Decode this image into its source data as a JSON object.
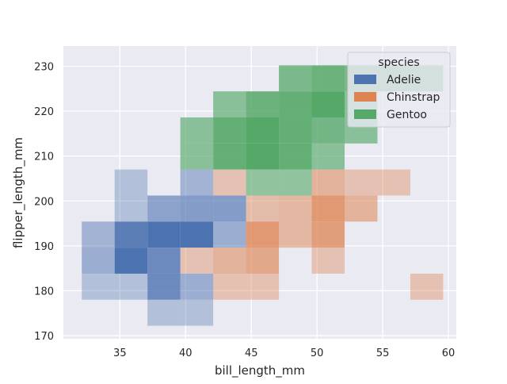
{
  "chart_data": {
    "type": "heatmap",
    "subtype": "bivariate-histogram",
    "xlabel": "bill_length_mm",
    "ylabel": "flipper_length_mm",
    "xlim": [
      30.7,
      60.6
    ],
    "ylim": [
      169.3,
      234.5
    ],
    "xticks": [
      35,
      40,
      45,
      50,
      55,
      60
    ],
    "yticks": [
      170,
      180,
      190,
      200,
      210,
      220,
      230
    ],
    "grid": true,
    "background_color": "#eaeaf2",
    "legend": {
      "title": "species",
      "placement": "top-right"
    },
    "bin_width_x": 2.5,
    "bin_height_y": 5.8,
    "series": [
      {
        "name": "Adelie",
        "color": "#4c72b0",
        "bins": [
          {
            "x0": 32.1,
            "y0": 178.0,
            "alpha": 0.35
          },
          {
            "x0": 34.6,
            "y0": 178.0,
            "alpha": 0.35
          },
          {
            "x0": 37.1,
            "y0": 178.0,
            "alpha": 0.8
          },
          {
            "x0": 39.6,
            "y0": 178.0,
            "alpha": 0.5
          },
          {
            "x0": 37.1,
            "y0": 172.2,
            "alpha": 0.35
          },
          {
            "x0": 39.6,
            "y0": 172.2,
            "alpha": 0.35
          },
          {
            "x0": 32.1,
            "y0": 183.8,
            "alpha": 0.5
          },
          {
            "x0": 34.6,
            "y0": 183.8,
            "alpha": 1.0
          },
          {
            "x0": 37.1,
            "y0": 183.8,
            "alpha": 0.8
          },
          {
            "x0": 32.1,
            "y0": 189.6,
            "alpha": 0.45
          },
          {
            "x0": 34.6,
            "y0": 189.6,
            "alpha": 0.9
          },
          {
            "x0": 37.1,
            "y0": 189.6,
            "alpha": 1.0
          },
          {
            "x0": 39.6,
            "y0": 189.6,
            "alpha": 1.0
          },
          {
            "x0": 42.1,
            "y0": 189.6,
            "alpha": 0.5
          },
          {
            "x0": 34.6,
            "y0": 195.4,
            "alpha": 0.35
          },
          {
            "x0": 37.1,
            "y0": 195.4,
            "alpha": 0.6
          },
          {
            "x0": 39.6,
            "y0": 195.4,
            "alpha": 0.65
          },
          {
            "x0": 42.1,
            "y0": 195.4,
            "alpha": 0.65
          },
          {
            "x0": 34.6,
            "y0": 201.2,
            "alpha": 0.35
          },
          {
            "x0": 39.6,
            "y0": 201.2,
            "alpha": 0.45
          }
        ]
      },
      {
        "name": "Chinstrap",
        "color": "#dd8452",
        "bins": [
          {
            "x0": 42.1,
            "y0": 178.0,
            "alpha": 0.4
          },
          {
            "x0": 44.6,
            "y0": 178.0,
            "alpha": 0.4
          },
          {
            "x0": 57.1,
            "y0": 178.0,
            "alpha": 0.4
          },
          {
            "x0": 39.6,
            "y0": 183.8,
            "alpha": 0.4
          },
          {
            "x0": 42.1,
            "y0": 183.8,
            "alpha": 0.55
          },
          {
            "x0": 44.6,
            "y0": 183.8,
            "alpha": 0.65
          },
          {
            "x0": 49.6,
            "y0": 183.8,
            "alpha": 0.4
          },
          {
            "x0": 44.6,
            "y0": 189.6,
            "alpha": 0.8
          },
          {
            "x0": 47.1,
            "y0": 189.6,
            "alpha": 0.5
          },
          {
            "x0": 49.6,
            "y0": 189.6,
            "alpha": 0.75
          },
          {
            "x0": 44.6,
            "y0": 195.4,
            "alpha": 0.45
          },
          {
            "x0": 47.1,
            "y0": 195.4,
            "alpha": 0.5
          },
          {
            "x0": 49.6,
            "y0": 195.4,
            "alpha": 0.8
          },
          {
            "x0": 52.1,
            "y0": 195.4,
            "alpha": 0.55
          },
          {
            "x0": 42.1,
            "y0": 201.2,
            "alpha": 0.4
          },
          {
            "x0": 49.6,
            "y0": 201.2,
            "alpha": 0.55
          },
          {
            "x0": 52.1,
            "y0": 201.2,
            "alpha": 0.4
          },
          {
            "x0": 54.6,
            "y0": 201.2,
            "alpha": 0.4
          }
        ]
      },
      {
        "name": "Gentoo",
        "color": "#55a868",
        "bins": [
          {
            "x0": 44.6,
            "y0": 201.2,
            "alpha": 0.6
          },
          {
            "x0": 47.1,
            "y0": 201.2,
            "alpha": 0.6
          },
          {
            "x0": 39.6,
            "y0": 207.0,
            "alpha": 0.65
          },
          {
            "x0": 42.1,
            "y0": 207.0,
            "alpha": 0.9
          },
          {
            "x0": 44.6,
            "y0": 207.0,
            "alpha": 1.0
          },
          {
            "x0": 47.1,
            "y0": 207.0,
            "alpha": 0.9
          },
          {
            "x0": 49.6,
            "y0": 207.0,
            "alpha": 0.65
          },
          {
            "x0": 39.6,
            "y0": 212.8,
            "alpha": 0.65
          },
          {
            "x0": 42.1,
            "y0": 212.8,
            "alpha": 0.9
          },
          {
            "x0": 44.6,
            "y0": 212.8,
            "alpha": 1.0
          },
          {
            "x0": 47.1,
            "y0": 212.8,
            "alpha": 0.9
          },
          {
            "x0": 49.6,
            "y0": 212.8,
            "alpha": 0.8
          },
          {
            "x0": 52.1,
            "y0": 212.8,
            "alpha": 0.65
          },
          {
            "x0": 42.1,
            "y0": 218.6,
            "alpha": 0.65
          },
          {
            "x0": 44.6,
            "y0": 218.6,
            "alpha": 0.85
          },
          {
            "x0": 47.1,
            "y0": 218.6,
            "alpha": 0.9
          },
          {
            "x0": 49.6,
            "y0": 218.6,
            "alpha": 1.0
          },
          {
            "x0": 52.1,
            "y0": 218.6,
            "alpha": 0.65
          },
          {
            "x0": 47.1,
            "y0": 224.4,
            "alpha": 0.75
          },
          {
            "x0": 49.6,
            "y0": 224.4,
            "alpha": 0.85
          },
          {
            "x0": 52.1,
            "y0": 224.4,
            "alpha": 0.75
          },
          {
            "x0": 54.6,
            "y0": 224.4,
            "alpha": 0.75
          },
          {
            "x0": 57.1,
            "y0": 224.4,
            "alpha": 0.75
          }
        ]
      }
    ]
  }
}
